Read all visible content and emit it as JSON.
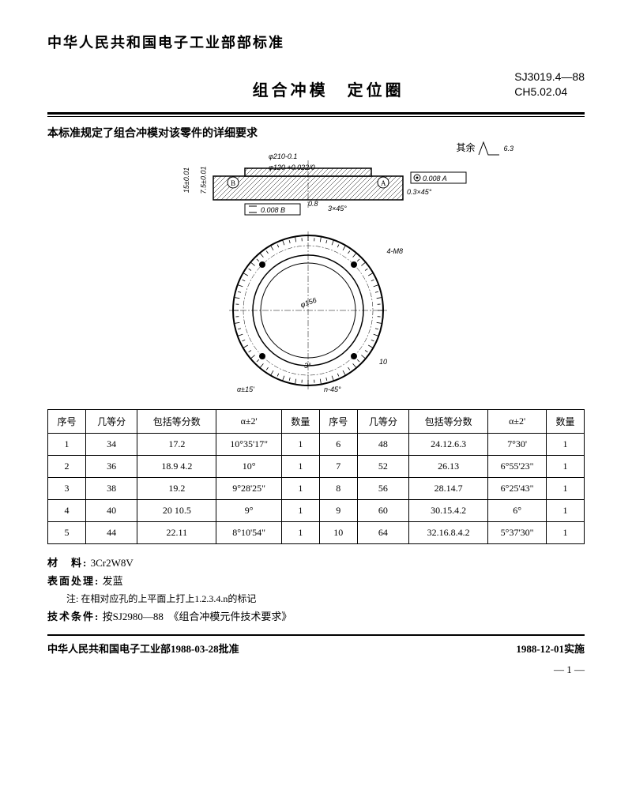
{
  "header": {
    "org": "中华人民共和国电子工业部部标准",
    "title": "组合冲模　定位圈",
    "code1": "SJ3019.4—88",
    "code2": "CH5.02.04"
  },
  "intro": "本标准规定了组合冲模对该零件的详细要求",
  "drawing": {
    "cross_section": {
      "outer_dia": "φ210-0.1",
      "inner_dia": "φ120 +0.022/0",
      "height1": "15±0.01",
      "height2": "7.5±0.01",
      "datum_A": "A",
      "datum_B": "B",
      "tol_flat": "0.008 A",
      "tol_par": "0.008 B",
      "chamfer1": "0.3×45°",
      "chamfer2": "3×45°",
      "radius": "0.8",
      "surface_note": "其余",
      "surface_val": "6.3"
    },
    "top_view": {
      "bolt": "4-M8",
      "graduation_dia": "φ156",
      "angle_tol": "α±15'",
      "notch": "n-45°",
      "pitch": "10",
      "inner_angle": "3°"
    }
  },
  "table": {
    "headers": [
      "序号",
      "几等分",
      "包括等分数",
      "α±2'",
      "数量",
      "序号",
      "几等分",
      "包括等分数",
      "α±2'",
      "数量"
    ],
    "rows": [
      [
        "1",
        "34",
        "17.2",
        "10°35'17\"",
        "1",
        "6",
        "48",
        "24.12.6.3",
        "7°30'",
        "1"
      ],
      [
        "2",
        "36",
        "18.9 4.2",
        "10°",
        "1",
        "7",
        "52",
        "26.13",
        "6°55'23\"",
        "1"
      ],
      [
        "3",
        "38",
        "19.2",
        "9°28'25\"",
        "1",
        "8",
        "56",
        "28.14.7",
        "6°25'43\"",
        "1"
      ],
      [
        "4",
        "40",
        "20 10.5",
        "9°",
        "1",
        "9",
        "60",
        "30.15.4.2",
        "6°",
        "1"
      ],
      [
        "5",
        "44",
        "22.11",
        "8°10'54\"",
        "1",
        "10",
        "64",
        "32.16.8.4.2",
        "5°37'30\"",
        "1"
      ]
    ]
  },
  "specs": {
    "material_lbl": "材　料:",
    "material_val": "3Cr2W8V",
    "surface_lbl": "表面处理:",
    "surface_val": "发蓝",
    "note_lbl": "注:",
    "note_val": "在相对应孔的上平面上打上1.2.3.4.n的标记",
    "tech_lbl": "技术条件:",
    "tech_val": "按SJ2980—88　《组合冲模元件技术要求》"
  },
  "footer": {
    "left": "中华人民共和国电子工业部1988-03-28批准",
    "right": "1988-12-01实施",
    "page": "— 1 —"
  }
}
